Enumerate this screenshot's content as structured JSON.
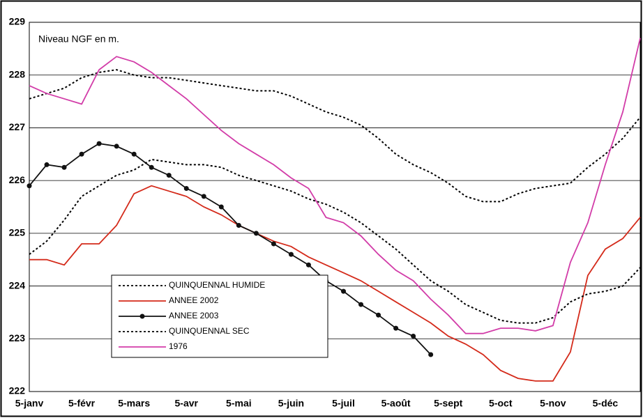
{
  "chart_data": {
    "type": "line",
    "annotation": "Niveau NGF en m.",
    "categories": [
      "5-janv",
      null,
      null,
      "5-févr",
      null,
      null,
      "5-mars",
      null,
      null,
      "5-avr",
      null,
      null,
      "5-mai",
      null,
      null,
      "5-juin",
      null,
      null,
      "5-juil",
      null,
      null,
      "5-août",
      null,
      null,
      "5-sept",
      null,
      null,
      "5-oct",
      null,
      null,
      "5-nov",
      null,
      null,
      "5-déc",
      null,
      null
    ],
    "ylim": [
      222,
      229
    ],
    "yticks": [
      222,
      223,
      224,
      225,
      226,
      227,
      228,
      229
    ],
    "grid": true,
    "legend": "lower-left",
    "series": [
      {
        "name": "QUINQUENNAL HUMIDE",
        "color": "#000000",
        "style": "dotted",
        "values": [
          227.55,
          227.65,
          227.75,
          227.95,
          228.05,
          228.1,
          228.0,
          227.95,
          227.95,
          227.9,
          227.85,
          227.8,
          227.75,
          227.7,
          227.7,
          227.6,
          227.45,
          227.3,
          227.2,
          227.05,
          226.8,
          226.5,
          226.3,
          226.15,
          225.95,
          225.7,
          225.6,
          225.6,
          225.75,
          225.85,
          225.9,
          225.95,
          226.25,
          226.5,
          226.8,
          227.2
        ]
      },
      {
        "name": "ANNEE 2002",
        "color": "#d42a1a",
        "style": "solid",
        "values": [
          224.5,
          224.5,
          224.4,
          224.8,
          224.8,
          225.15,
          225.75,
          225.9,
          225.8,
          225.7,
          225.5,
          225.35,
          225.15,
          225.0,
          224.85,
          224.75,
          224.55,
          224.4,
          224.25,
          224.1,
          223.9,
          223.7,
          223.5,
          223.3,
          223.05,
          222.9,
          222.7,
          222.4,
          222.25,
          222.2,
          222.2,
          222.75,
          224.2,
          224.7,
          224.9,
          225.3
        ]
      },
      {
        "name": "ANNEE 2003",
        "color": "#111111",
        "style": "solid",
        "marker": true,
        "values": [
          225.9,
          226.3,
          226.25,
          226.5,
          226.7,
          226.65,
          226.5,
          226.25,
          226.1,
          225.85,
          225.7,
          225.5,
          225.15,
          225.0,
          224.8,
          224.6,
          224.4,
          224.1,
          223.9,
          223.65,
          223.45,
          223.2,
          223.05,
          222.7,
          null,
          null,
          null,
          null,
          null,
          null,
          null,
          null,
          null,
          null,
          null,
          null
        ]
      },
      {
        "name": "QUINQUENNAL SEC",
        "color": "#000000",
        "style": "dotted",
        "values": [
          224.6,
          224.85,
          225.25,
          225.7,
          225.9,
          226.1,
          226.2,
          226.4,
          226.35,
          226.3,
          226.3,
          226.25,
          226.1,
          226.0,
          225.9,
          225.8,
          225.65,
          225.55,
          225.4,
          225.2,
          224.95,
          224.7,
          224.4,
          224.1,
          223.9,
          223.65,
          223.5,
          223.35,
          223.3,
          223.3,
          223.4,
          223.7,
          223.85,
          223.9,
          224.0,
          224.35
        ]
      },
      {
        "name": "1976",
        "color": "#d23ca8",
        "style": "solid",
        "values": [
          227.8,
          227.65,
          227.55,
          227.45,
          228.1,
          228.35,
          228.25,
          228.05,
          227.8,
          227.55,
          227.25,
          226.95,
          226.7,
          226.5,
          226.3,
          226.05,
          225.85,
          225.3,
          225.2,
          224.95,
          224.6,
          224.3,
          224.1,
          223.75,
          223.45,
          223.1,
          223.1,
          223.2,
          223.2,
          223.15,
          223.25,
          224.45,
          225.2,
          226.3,
          227.3,
          228.7
        ]
      }
    ]
  }
}
